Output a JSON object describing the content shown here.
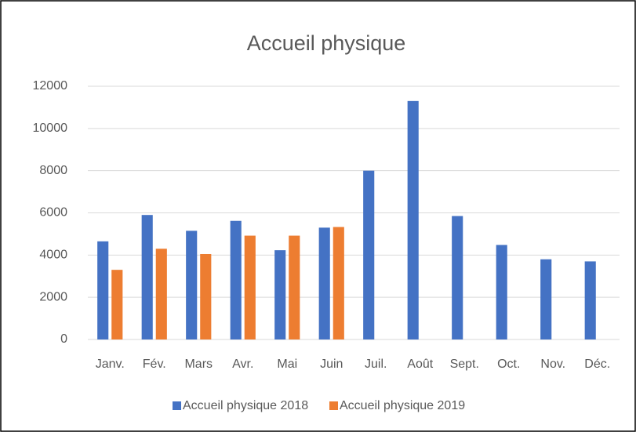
{
  "chart_data": {
    "type": "bar",
    "title": "Accueil physique",
    "categories": [
      "Janv.",
      "Fév.",
      "Mars",
      "Avr.",
      "Mai",
      "Juin",
      "Juil.",
      "Août",
      "Sept.",
      "Oct.",
      "Nov.",
      "Déc."
    ],
    "series": [
      {
        "name": "Accueil physique 2018",
        "color": "#4472c4",
        "values": [
          4650,
          5900,
          5150,
          5620,
          4230,
          5300,
          8000,
          11300,
          5850,
          4480,
          3800,
          3700
        ]
      },
      {
        "name": "Accueil physique 2019",
        "color": "#ed7d31",
        "values": [
          3300,
          4300,
          4050,
          4920,
          4920,
          5330,
          null,
          null,
          null,
          null,
          null,
          null
        ]
      }
    ],
    "ylim": [
      0,
      12000
    ],
    "yticks": [
      0,
      2000,
      4000,
      6000,
      8000,
      10000,
      12000
    ],
    "grid": true,
    "legend": "bottom"
  }
}
